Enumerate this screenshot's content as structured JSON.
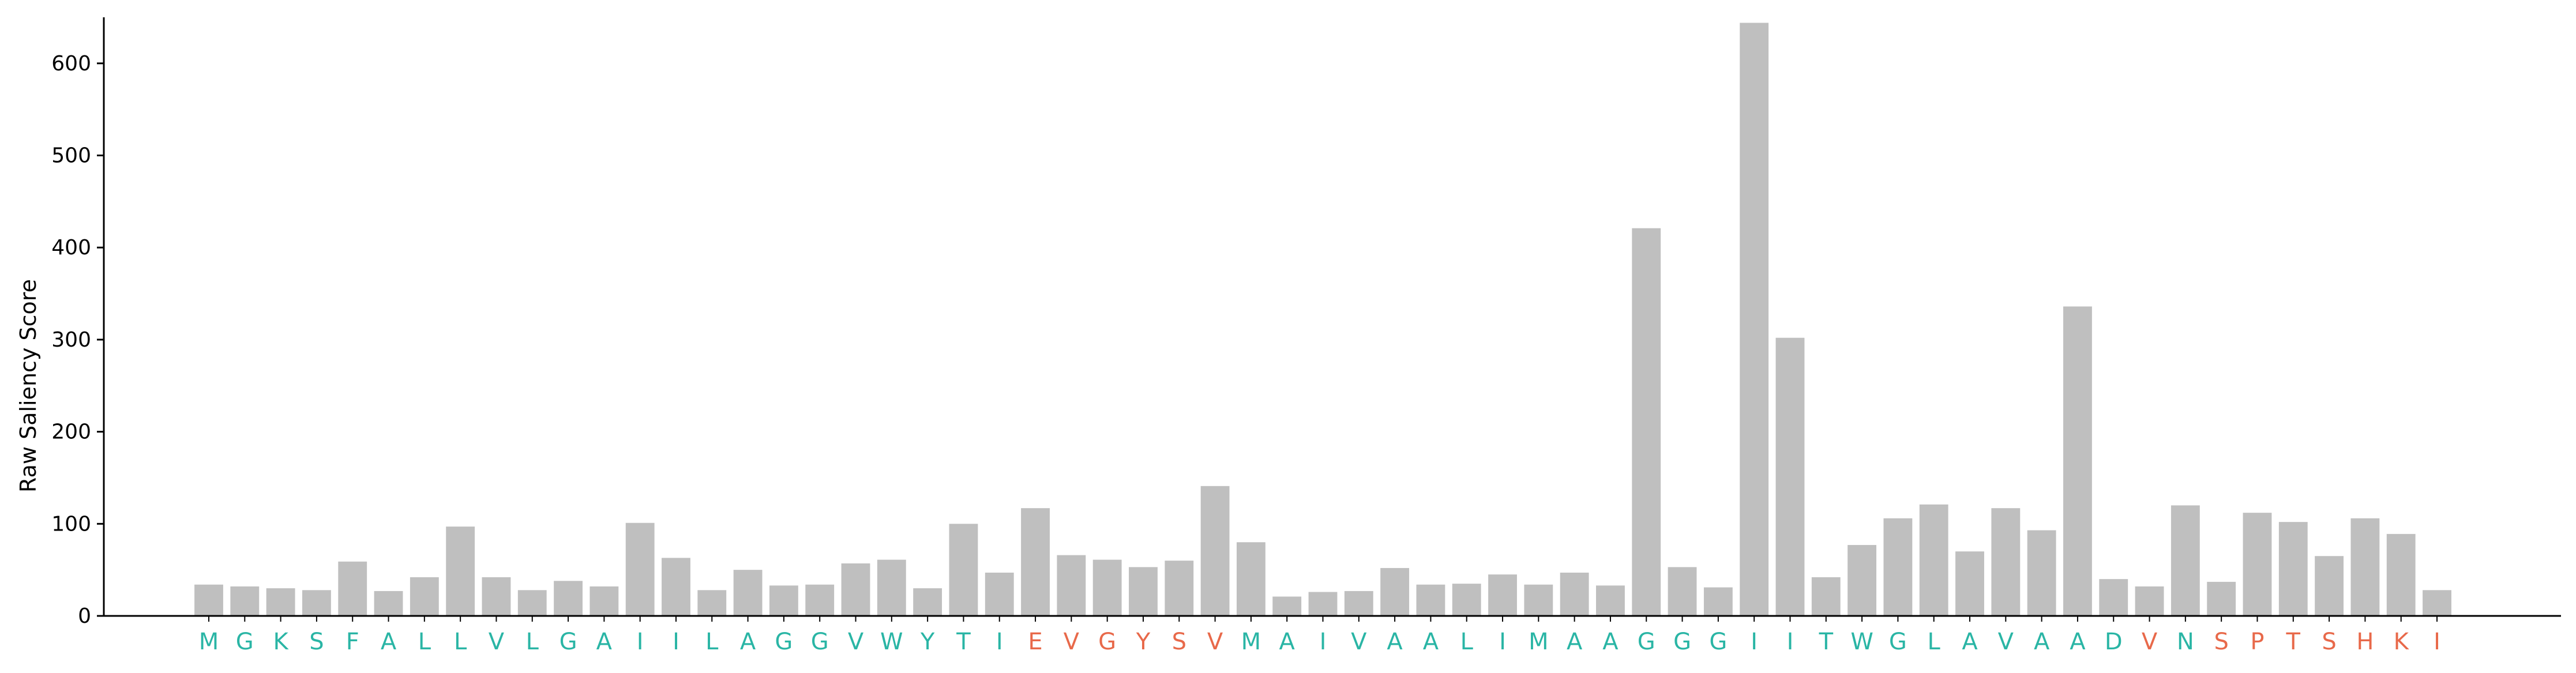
{
  "chart_data": {
    "type": "bar",
    "ylabel": "Raw Saliency Score",
    "xlabel": "",
    "ylim": [
      0,
      650
    ],
    "yticks": [
      0,
      100,
      200,
      300,
      400,
      500,
      600
    ],
    "bar_color": "#bfbfbf",
    "label_colors": {
      "teal": "#2ab5a5",
      "orange": "#e8694a"
    },
    "categories": [
      "M",
      "G",
      "K",
      "S",
      "F",
      "A",
      "L",
      "L",
      "V",
      "L",
      "G",
      "A",
      "I",
      "I",
      "L",
      "A",
      "G",
      "G",
      "V",
      "W",
      "Y",
      "T",
      "I",
      "E",
      "V",
      "G",
      "Y",
      "S",
      "V",
      "M",
      "A",
      "I",
      "V",
      "A",
      "A",
      "L",
      "I",
      "M",
      "A",
      "A",
      "G",
      "G",
      "G",
      "I",
      "I",
      "T",
      "W",
      "G",
      "L",
      "A",
      "V",
      "A",
      "A",
      "D",
      "V",
      "N",
      "S",
      "P",
      "T",
      "S",
      "H",
      "K",
      "I"
    ],
    "label_color_keys": [
      "teal",
      "teal",
      "teal",
      "teal",
      "teal",
      "teal",
      "teal",
      "teal",
      "teal",
      "teal",
      "teal",
      "teal",
      "teal",
      "teal",
      "teal",
      "teal",
      "teal",
      "teal",
      "teal",
      "teal",
      "teal",
      "teal",
      "teal",
      "orange",
      "orange",
      "orange",
      "orange",
      "orange",
      "orange",
      "teal",
      "teal",
      "teal",
      "teal",
      "teal",
      "teal",
      "teal",
      "teal",
      "teal",
      "teal",
      "teal",
      "teal",
      "teal",
      "teal",
      "teal",
      "teal",
      "teal",
      "teal",
      "teal",
      "teal",
      "teal",
      "teal",
      "teal",
      "teal",
      "teal",
      "orange",
      "teal",
      "orange",
      "orange",
      "orange",
      "orange",
      "orange",
      "orange",
      "orange"
    ],
    "values": [
      34,
      32,
      30,
      28,
      59,
      27,
      42,
      97,
      42,
      28,
      38,
      32,
      101,
      63,
      28,
      50,
      33,
      34,
      57,
      61,
      30,
      100,
      47,
      117,
      66,
      61,
      53,
      60,
      141,
      80,
      21,
      26,
      27,
      52,
      34,
      35,
      45,
      34,
      47,
      33,
      421,
      53,
      31,
      644,
      302,
      42,
      77,
      106,
      121,
      70,
      117,
      93,
      336,
      40,
      32,
      120,
      37,
      112,
      102,
      65,
      106,
      89,
      28
    ]
  }
}
